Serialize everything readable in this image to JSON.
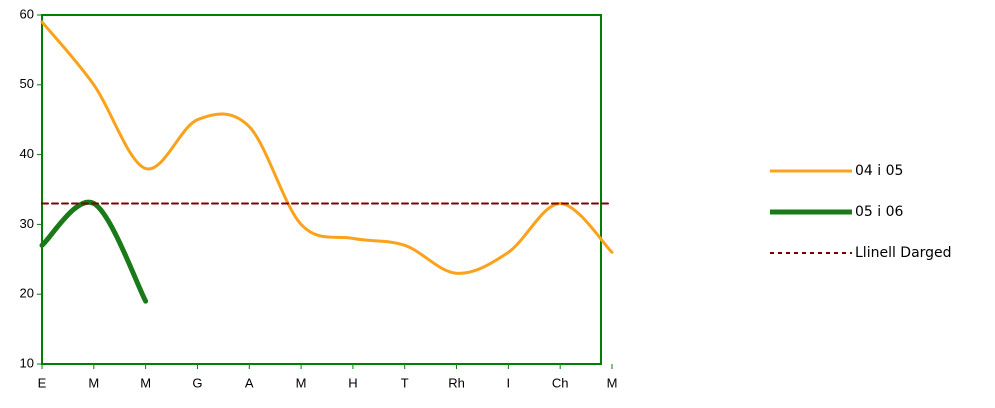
{
  "chart_data": {
    "type": "line",
    "categories": [
      "E",
      "M",
      "M",
      "G",
      "A",
      "M",
      "H",
      "T",
      "Rh",
      "I",
      "Ch",
      "M"
    ],
    "series": [
      {
        "name": "04 i 05",
        "color": "#faa21b",
        "values": [
          59,
          50,
          38,
          45,
          44,
          30,
          28,
          27,
          23,
          26,
          33,
          26
        ],
        "width": 3,
        "dash": false
      },
      {
        "name": "05 i 06",
        "color": "#1a7a1a",
        "values": [
          27,
          33,
          19,
          null,
          null,
          null,
          null,
          null,
          null,
          null,
          null,
          null
        ],
        "width": 5,
        "dash": false
      },
      {
        "name": "Llinell Darged",
        "color": "#800000",
        "values": [
          33,
          33,
          33,
          33,
          33,
          33,
          33,
          33,
          33,
          33,
          33,
          33
        ],
        "width": 2,
        "dash": true
      }
    ],
    "ylim": [
      10,
      60
    ],
    "yticks": [
      10,
      20,
      30,
      40,
      50,
      60
    ],
    "axis_color": "#008000"
  }
}
